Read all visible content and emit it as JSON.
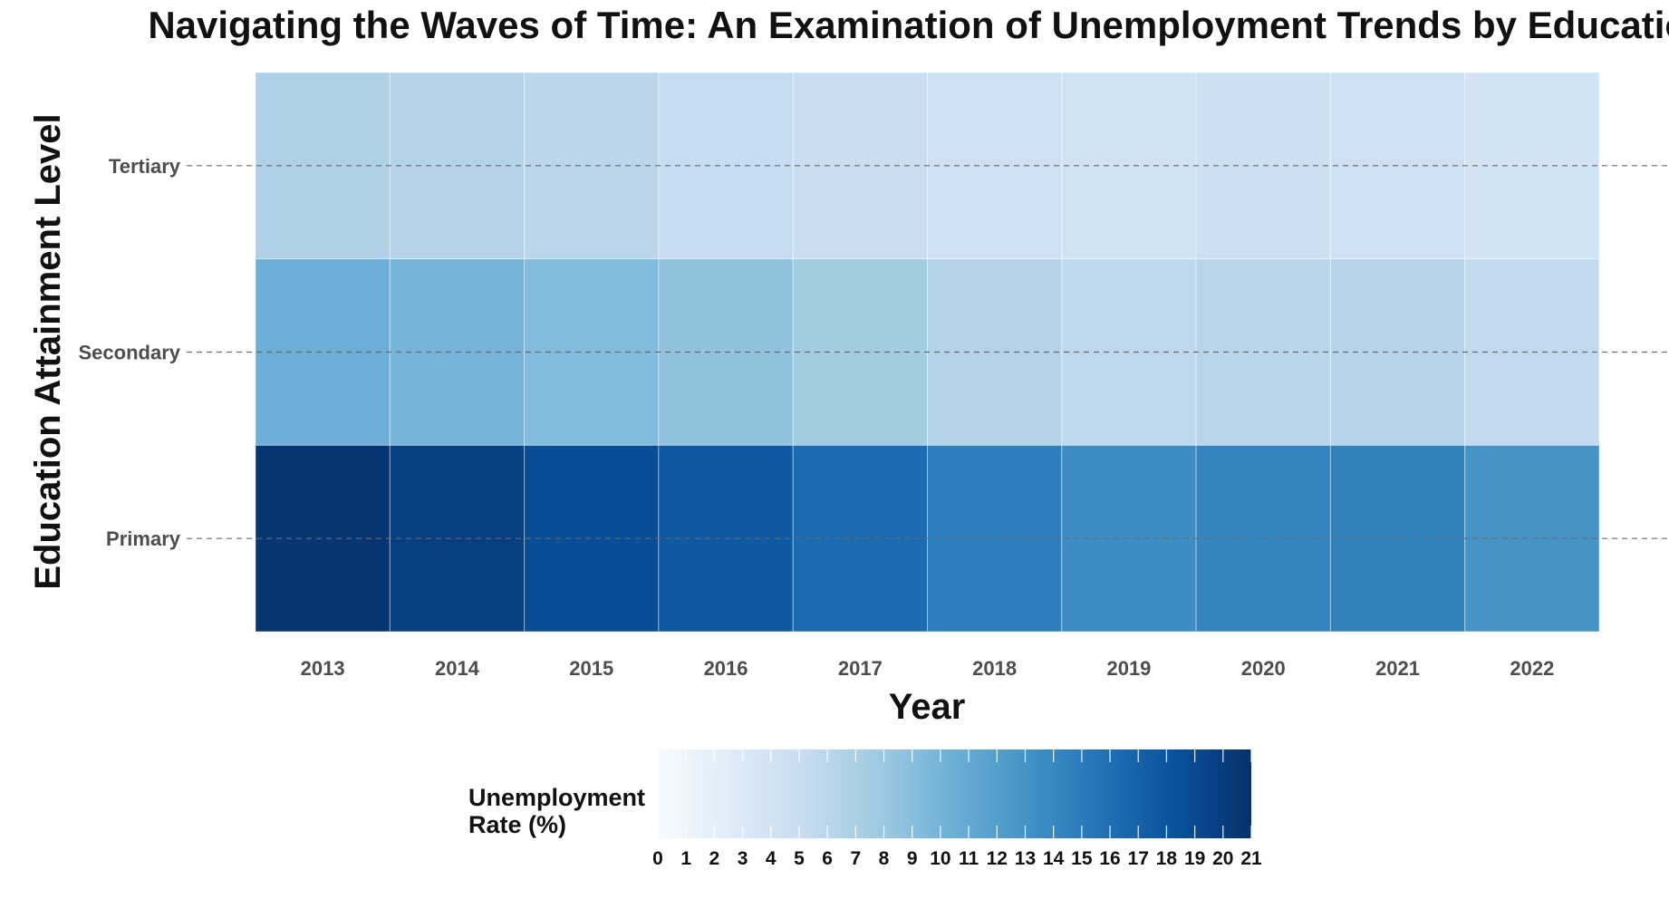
{
  "chart_data": {
    "type": "heatmap",
    "title": "Navigating the Waves of Time: An Examination of Unemployment Trends by Education",
    "xlabel": "Year",
    "ylabel": "Education Attainment Level",
    "x": [
      "2013",
      "2014",
      "2015",
      "2016",
      "2017",
      "2018",
      "2019",
      "2020",
      "2021",
      "2022"
    ],
    "y": [
      "Tertiary",
      "Secondary",
      "Primary"
    ],
    "values": [
      [
        6.8,
        6.5,
        6.0,
        5.3,
        4.8,
        4.4,
        4.0,
        4.5,
        4.4,
        3.9
      ],
      [
        10.5,
        10.0,
        9.3,
        8.6,
        7.6,
        6.5,
        5.7,
        6.1,
        6.4,
        5.5
      ],
      [
        20.5,
        19.8,
        18.7,
        17.7,
        16.3,
        14.7,
        13.5,
        14.2,
        14.5,
        12.9
      ]
    ],
    "color_scale": {
      "name": "Unemployment\nRate (%)",
      "min": 0,
      "max": 21,
      "ticks": [
        0,
        1,
        2,
        3,
        4,
        5,
        6,
        7,
        8,
        9,
        10,
        11,
        12,
        13,
        14,
        15,
        16,
        17,
        18,
        19,
        20,
        21
      ],
      "palette": [
        "#f7fbff",
        "#deebf7",
        "#c6dbef",
        "#9ecae1",
        "#6baed6",
        "#4292c6",
        "#2171b5",
        "#08519c",
        "#08306b"
      ]
    },
    "grid": "horizontal-dashed",
    "legend_position": "bottom"
  }
}
